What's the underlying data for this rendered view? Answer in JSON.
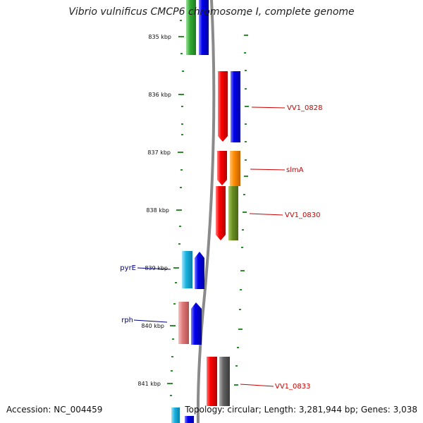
{
  "title": "Vibrio vulnificus CMCP6 chromosome I, complete genome",
  "footer": {
    "accession": "Accession: NC_004459",
    "summary": "Topology: circular; Length: 3,281,944 bp; Genes: 3,038"
  },
  "tick_labels": [
    "835 kbp",
    "836 kbp",
    "837 kbp",
    "838 kbp",
    "839 kbp",
    "840 kbp",
    "841 kbp"
  ],
  "genes": [
    {
      "label": "VV1_0828",
      "color": "#cc0000"
    },
    {
      "label": "slmA",
      "color": "#cc0000"
    },
    {
      "label": "VV1_0830",
      "color": "#cc0000"
    },
    {
      "label": "pyrE",
      "color": "#000080"
    },
    {
      "label": "rph",
      "color": "#000080"
    },
    {
      "label": "VV1_0833",
      "color": "#cc0000"
    }
  ],
  "colors": {
    "backbone": "#8a8a8a",
    "tick": "#2e8b2e",
    "red_feature": "#ff0000",
    "blue_feature": "#0000ee",
    "green_feature": "#33aa33",
    "orange_feature": "#ff8c00",
    "olive_feature": "#6b8e23",
    "cyan_feature": "#1ab2e0",
    "pink_feature": "#e07a7a",
    "grey_feature": "#606060"
  }
}
